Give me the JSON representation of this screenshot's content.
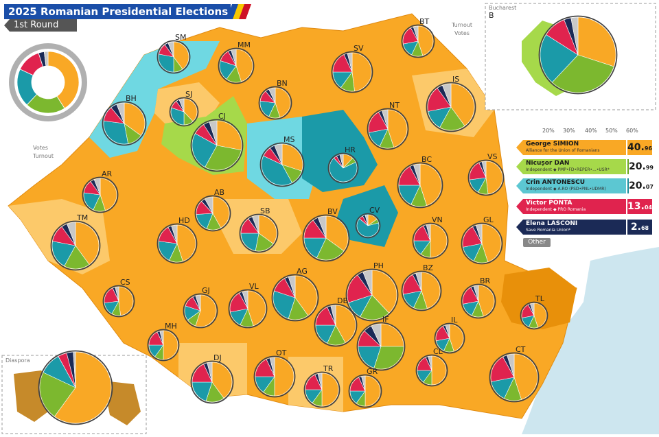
{
  "title": "2025 Romanian Presidential Elections",
  "round": "1st Round",
  "colors": {
    "simion": "#f9a825",
    "dan": "#7cb82f",
    "antonescu": "#1b9aa8",
    "ponta": "#e0234e",
    "lasconi": "#1b2a56",
    "other": "#c8c8c8",
    "turnout": "#444444"
  },
  "candidates": [
    {
      "name": "George SIMION",
      "party": "Alliance for the Union of Romanians",
      "pct_main": "40.",
      "pct_dec": "96",
      "color": "#f9a825",
      "bar": "#e8900a"
    },
    {
      "name": "Nicușor DAN",
      "party": "Independent ◆ PMP•FD•REPER•...•USR*",
      "pct_main": "20.",
      "pct_dec": "99",
      "color": "#a6d94a",
      "bar": "#6aa520"
    },
    {
      "name": "Crin ANTONESCU",
      "party": "Independent ◆ A.RO (PSD•PNL•UDMR)",
      "pct_main": "20.",
      "pct_dec": "07",
      "color": "#5cc7d2",
      "bar": "#1b8b99"
    },
    {
      "name": "Victor PONTA",
      "party": "Independent ◆ PRO Romania",
      "pct_main": "13.",
      "pct_dec": "04",
      "color": "#e0234e",
      "bar": "#b8123a"
    },
    {
      "name": "Elena LASCONI",
      "party": "Save Romania Union*",
      "pct_main": "2.",
      "pct_dec": "68",
      "color": "#1b2a56",
      "bar": "#121d3e"
    }
  ],
  "other_label": "Other",
  "scale_labels": [
    "20%",
    "30%",
    "40%",
    "50%",
    "60%"
  ],
  "legend_labels": {
    "turnout": "Turnout",
    "votes": "Votes"
  },
  "inset_labels": {
    "bucharest": "Bucharest",
    "bucharest_code": "B",
    "diaspora": "Diaspora"
  },
  "counties": [
    {
      "code": "SM",
      "shares": [
        40,
        10,
        28,
        12,
        4,
        6
      ]
    },
    {
      "code": "MM",
      "shares": [
        45,
        15,
        20,
        12,
        3,
        5
      ]
    },
    {
      "code": "BT",
      "shares": [
        45,
        12,
        15,
        20,
        3,
        5
      ]
    },
    {
      "code": "SV",
      "shares": [
        48,
        12,
        15,
        18,
        3,
        4
      ]
    },
    {
      "code": "BH",
      "shares": [
        35,
        12,
        30,
        12,
        5,
        6
      ]
    },
    {
      "code": "SJ",
      "shares": [
        38,
        12,
        30,
        10,
        4,
        6
      ]
    },
    {
      "code": "BN",
      "shares": [
        45,
        12,
        20,
        12,
        4,
        7
      ]
    },
    {
      "code": "IS",
      "shares": [
        40,
        18,
        14,
        18,
        4,
        6
      ]
    },
    {
      "code": "CJ",
      "shares": [
        28,
        30,
        25,
        8,
        4,
        5
      ]
    },
    {
      "code": "NT",
      "shares": [
        45,
        12,
        15,
        20,
        3,
        5
      ]
    },
    {
      "code": "MS",
      "shares": [
        30,
        12,
        40,
        8,
        4,
        6
      ]
    },
    {
      "code": "HR",
      "shares": [
        12,
        6,
        70,
        4,
        4,
        4
      ]
    },
    {
      "code": "AR",
      "shares": [
        45,
        12,
        20,
        13,
        4,
        6
      ]
    },
    {
      "code": "BC",
      "shares": [
        45,
        12,
        18,
        17,
        3,
        5
      ]
    },
    {
      "code": "VS",
      "shares": [
        48,
        10,
        15,
        20,
        3,
        4
      ]
    },
    {
      "code": "AB",
      "shares": [
        42,
        14,
        18,
        14,
        4,
        8
      ]
    },
    {
      "code": "CV",
      "shares": [
        15,
        6,
        65,
        6,
        4,
        4
      ]
    },
    {
      "code": "SB",
      "shares": [
        35,
        18,
        22,
        15,
        4,
        6
      ]
    },
    {
      "code": "BV",
      "shares": [
        35,
        22,
        18,
        15,
        4,
        6
      ]
    },
    {
      "code": "TM",
      "shares": [
        40,
        18,
        20,
        12,
        4,
        6
      ]
    },
    {
      "code": "HD",
      "shares": [
        45,
        12,
        20,
        15,
        3,
        5
      ]
    },
    {
      "code": "VN",
      "shares": [
        50,
        10,
        15,
        18,
        3,
        4
      ]
    },
    {
      "code": "GL",
      "shares": [
        45,
        12,
        15,
        20,
        3,
        5
      ]
    },
    {
      "code": "AG",
      "shares": [
        40,
        15,
        25,
        12,
        3,
        5
      ]
    },
    {
      "code": "PH",
      "shares": [
        38,
        20,
        12,
        20,
        4,
        6
      ]
    },
    {
      "code": "BZ",
      "shares": [
        45,
        12,
        15,
        20,
        3,
        5
      ]
    },
    {
      "code": "CS",
      "shares": [
        48,
        10,
        15,
        20,
        3,
        4
      ]
    },
    {
      "code": "GJ",
      "shares": [
        55,
        10,
        15,
        12,
        3,
        5
      ]
    },
    {
      "code": "VL",
      "shares": [
        45,
        12,
        15,
        20,
        3,
        5
      ]
    },
    {
      "code": "DB",
      "shares": [
        42,
        15,
        18,
        18,
        3,
        4
      ]
    },
    {
      "code": "BR",
      "shares": [
        45,
        12,
        15,
        20,
        3,
        5
      ]
    },
    {
      "code": "TL",
      "shares": [
        45,
        12,
        15,
        20,
        3,
        5
      ]
    },
    {
      "code": "MH",
      "shares": [
        50,
        10,
        15,
        18,
        3,
        4
      ]
    },
    {
      "code": "IL",
      "shares": [
        45,
        12,
        15,
        20,
        3,
        5
      ]
    },
    {
      "code": "IF",
      "shares": [
        25,
        30,
        20,
        12,
        6,
        7
      ]
    },
    {
      "code": "DJ",
      "shares": [
        40,
        15,
        20,
        18,
        3,
        4
      ]
    },
    {
      "code": "OT",
      "shares": [
        50,
        10,
        15,
        18,
        3,
        4
      ]
    },
    {
      "code": "TR",
      "shares": [
        50,
        10,
        15,
        18,
        3,
        4
      ]
    },
    {
      "code": "CL",
      "shares": [
        50,
        10,
        15,
        18,
        3,
        4
      ]
    },
    {
      "code": "GR",
      "shares": [
        50,
        10,
        15,
        18,
        3,
        4
      ]
    },
    {
      "code": "CT",
      "shares": [
        45,
        12,
        15,
        20,
        3,
        5
      ]
    }
  ],
  "bucharest": {
    "shares": [
      30,
      32,
      22,
      10,
      3,
      3
    ]
  },
  "diaspora": {
    "shares": [
      60,
      22,
      10,
      4,
      3,
      1
    ]
  },
  "national": {
    "shares": [
      41,
      21,
      20,
      13,
      3,
      2
    ]
  }
}
